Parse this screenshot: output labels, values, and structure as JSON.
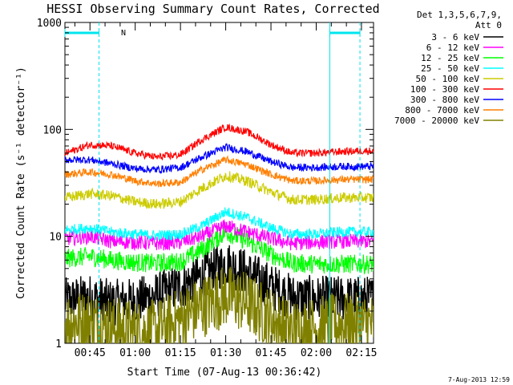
{
  "chart_data": {
    "type": "line",
    "title": "HESSI Observing Summary Count Rates, Corrected",
    "xlabel": "Start Time (07-Aug-13 00:36:42)",
    "ylabel": "Corrected Count Rate (s⁻¹ detector⁻¹)",
    "y_scale": "log",
    "ylim": [
      1,
      1000
    ],
    "y_ticks": [
      {
        "value": 1,
        "label": "1"
      },
      {
        "value": 10,
        "label": "10"
      },
      {
        "value": 100,
        "label": "100"
      },
      {
        "value": 1000,
        "label": "1000"
      }
    ],
    "xlim_minutes": [
      36.7,
      139.0
    ],
    "x_ticks": [
      {
        "value": 45,
        "label": "00:45"
      },
      {
        "value": 60,
        "label": "01:00"
      },
      {
        "value": 75,
        "label": "01:15"
      },
      {
        "value": 90,
        "label": "01:30"
      },
      {
        "value": 105,
        "label": "01:45"
      },
      {
        "value": 120,
        "label": "02:00"
      },
      {
        "value": 135,
        "label": "02:15"
      }
    ],
    "legend_header": [
      "Det 1,3,5,6,7,9,",
      "Att 0"
    ],
    "legend_position": "right",
    "timestamp": "7-Aug-2013 12:59",
    "night_marker_label": "N",
    "night_intervals": [
      [
        36.7,
        48.0
      ],
      [
        124.5,
        134.5
      ]
    ],
    "series": [
      {
        "name": "3 - 6 keV",
        "color": "#000000",
        "x": [
          37,
          45,
          52,
          60,
          67,
          75,
          82,
          90,
          97,
          105,
          112,
          120,
          128,
          135
        ],
        "values": [
          2.5,
          2.7,
          2.4,
          2.5,
          2.8,
          3.4,
          4.2,
          5.6,
          4.6,
          3.4,
          2.7,
          2.6,
          2.6,
          2.6
        ]
      },
      {
        "name": "6 - 12 keV",
        "color": "#ff00ff",
        "x": [
          37,
          45,
          52,
          60,
          67,
          75,
          82,
          90,
          97,
          105,
          112,
          120,
          128,
          135
        ],
        "values": [
          9.5,
          10.0,
          9.0,
          8.8,
          8.6,
          8.8,
          10.0,
          12.5,
          11.0,
          9.5,
          8.6,
          8.8,
          9.0,
          9.0
        ]
      },
      {
        "name": "12 - 25 keV",
        "color": "#00ff00",
        "x": [
          37,
          45,
          52,
          60,
          67,
          75,
          82,
          90,
          97,
          105,
          112,
          120,
          128,
          135
        ],
        "values": [
          6.2,
          6.5,
          6.0,
          5.7,
          5.6,
          5.8,
          7.5,
          11.0,
          9.0,
          6.8,
          5.6,
          5.5,
          5.5,
          5.5
        ]
      },
      {
        "name": "25 - 50 keV",
        "color": "#00ffff",
        "x": [
          37,
          45,
          52,
          60,
          67,
          75,
          82,
          90,
          97,
          105,
          112,
          120,
          128,
          135
        ],
        "values": [
          11.5,
          12.0,
          11.0,
          10.5,
          10.2,
          10.5,
          12.5,
          17.0,
          15.0,
          12.0,
          10.5,
          10.5,
          11.0,
          11.0
        ]
      },
      {
        "name": "50 - 100 keV",
        "color": "#cccc00",
        "x": [
          37,
          45,
          52,
          60,
          67,
          75,
          82,
          90,
          97,
          105,
          112,
          120,
          128,
          135
        ],
        "values": [
          23.0,
          25.0,
          24.0,
          21.0,
          20.0,
          21.0,
          28.0,
          37.0,
          33.0,
          26.0,
          22.0,
          22.0,
          23.0,
          23.0
        ]
      },
      {
        "name": "100 - 300 keV",
        "color": "#ff0000",
        "x": [
          37,
          45,
          52,
          60,
          67,
          75,
          82,
          90,
          97,
          105,
          112,
          120,
          128,
          135
        ],
        "values": [
          60.0,
          72.0,
          70.0,
          60.0,
          55.0,
          58.0,
          80.0,
          105.0,
          95.0,
          72.0,
          60.0,
          60.0,
          62.0,
          63.0
        ]
      },
      {
        "name": "300 - 800 keV",
        "color": "#0000ff",
        "x": [
          37,
          45,
          52,
          60,
          67,
          75,
          82,
          90,
          97,
          105,
          112,
          120,
          128,
          135
        ],
        "values": [
          52.0,
          52.0,
          48.0,
          43.0,
          42.0,
          44.0,
          55.0,
          68.0,
          62.0,
          50.0,
          44.0,
          44.0,
          45.0,
          45.0
        ]
      },
      {
        "name": "800 - 7000 keV",
        "color": "#ff7f00",
        "x": [
          37,
          45,
          52,
          60,
          67,
          75,
          82,
          90,
          97,
          105,
          112,
          120,
          128,
          135
        ],
        "values": [
          38.0,
          40.0,
          38.0,
          33.0,
          31.0,
          32.0,
          42.0,
          52.0,
          47.0,
          38.0,
          33.0,
          33.0,
          34.0,
          34.0
        ]
      },
      {
        "name": "7000 - 20000 keV",
        "color": "#808000",
        "x": [
          37,
          45,
          52,
          60,
          67,
          75,
          82,
          90,
          97,
          105,
          112,
          120,
          128,
          135
        ],
        "values": [
          1.6,
          1.6,
          1.4,
          1.3,
          1.3,
          1.7,
          2.2,
          2.8,
          2.4,
          1.7,
          1.3,
          1.4,
          1.5,
          1.5
        ]
      }
    ]
  }
}
